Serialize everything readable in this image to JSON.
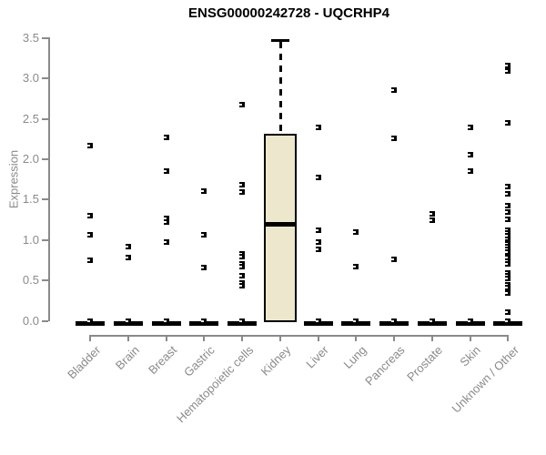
{
  "window": {
    "title": "ENSG00000242728 - UQCRHP4"
  },
  "chart_data": {
    "type": "boxplot",
    "title": "ENSG00000242728 - UQCRHP4",
    "xlabel": "",
    "ylabel": "Expression",
    "ylim": [
      0,
      3.5
    ],
    "yticks": [
      "0.0",
      "0.5",
      "1.0",
      "1.5",
      "2.0",
      "2.5",
      "3.0",
      "3.5"
    ],
    "grid": false,
    "legend": "none",
    "colors": {
      "box_fill": "#ECE7CD",
      "box_border": "#000000",
      "point": "#000000",
      "axis": "#8a8a8a",
      "title": "#000000"
    },
    "categories": [
      "Bladder",
      "Brain",
      "Breast",
      "Gastric",
      "Hematopoietic cells",
      "Kidney",
      "Liver",
      "Lung",
      "Pancreas",
      "Prostate",
      "Skin",
      "Unknown / Other"
    ],
    "series": [
      {
        "name": "Bladder",
        "box": {
          "q1": 0,
          "median": 0,
          "q3": 0
        },
        "points": [
          2.17,
          1.3,
          1.07,
          0.75,
          0
        ]
      },
      {
        "name": "Brain",
        "box": {
          "q1": 0,
          "median": 0,
          "q3": 0
        },
        "points": [
          0.92,
          0.78,
          0
        ]
      },
      {
        "name": "Breast",
        "box": {
          "q1": 0,
          "median": 0,
          "q3": 0
        },
        "points": [
          2.27,
          1.85,
          1.27,
          1.22,
          0.97,
          0
        ]
      },
      {
        "name": "Gastric",
        "box": {
          "q1": 0,
          "median": 0,
          "q3": 0
        },
        "points": [
          1.61,
          1.07,
          0.66,
          0
        ]
      },
      {
        "name": "Hematopoietic cells",
        "box": {
          "q1": 0,
          "median": 0,
          "q3": 0
        },
        "points": [
          2.68,
          1.69,
          1.6,
          0.83,
          0.79,
          0.7,
          0.67,
          0.56,
          0.47,
          0.43,
          0
        ]
      },
      {
        "name": "Kidney",
        "box": {
          "q1": 0,
          "median": 1.2,
          "q3": 2.32,
          "upper_whisker": 3.48
        },
        "points": []
      },
      {
        "name": "Liver",
        "box": {
          "q1": 0,
          "median": 0,
          "q3": 0
        },
        "points": [
          2.4,
          1.78,
          1.12,
          0.97,
          0.89,
          0
        ]
      },
      {
        "name": "Lung",
        "box": {
          "q1": 0,
          "median": 0,
          "q3": 0
        },
        "points": [
          1.1,
          0.67,
          0
        ]
      },
      {
        "name": "Pancreas",
        "box": {
          "q1": 0,
          "median": 0,
          "q3": 0
        },
        "points": [
          2.86,
          2.26,
          0.76,
          0
        ]
      },
      {
        "name": "Prostate",
        "box": {
          "q1": 0,
          "median": 0,
          "q3": 0
        },
        "points": [
          1.33,
          1.25,
          0
        ]
      },
      {
        "name": "Skin",
        "box": {
          "q1": 0,
          "median": 0,
          "q3": 0
        },
        "points": [
          2.4,
          2.06,
          1.85,
          0
        ]
      },
      {
        "name": "Unknown / Other",
        "box": {
          "q1": 0,
          "median": 0,
          "q3": 0
        },
        "points": [
          3.16,
          3.09,
          2.45,
          1.66,
          1.57,
          1.43,
          1.35,
          1.26,
          1.12,
          1.09,
          1.05,
          1.01,
          0.98,
          0.95,
          0.92,
          0.88,
          0.85,
          0.81,
          0.78,
          0.74,
          0.7,
          0.59,
          0.56,
          0.52,
          0.44,
          0.41,
          0.37,
          0.34,
          0.11,
          0
        ]
      }
    ]
  }
}
